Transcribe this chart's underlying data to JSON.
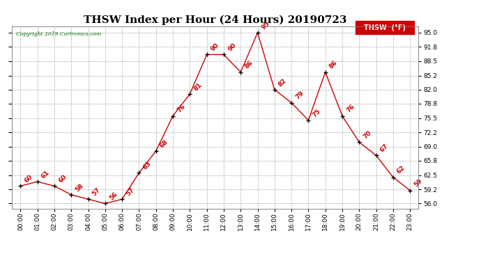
{
  "title": "THSW Index per Hour (24 Hours) 20190723",
  "copyright": "Copyright 2019 Cartronics.com",
  "legend_label": "THSW  (°F)",
  "x_labels": [
    "00:00",
    "01:00",
    "02:00",
    "03:00",
    "04:00",
    "05:00",
    "06:00",
    "07:00",
    "08:00",
    "09:00",
    "10:00",
    "11:00",
    "12:00",
    "13:00",
    "14:00",
    "15:00",
    "16:00",
    "17:00",
    "18:00",
    "19:00",
    "20:00",
    "21:00",
    "22:00",
    "23:00"
  ],
  "y_vals": [
    60,
    61,
    60,
    58,
    57,
    56,
    57,
    63,
    68,
    76,
    81,
    90,
    90,
    86,
    95,
    82,
    79,
    75,
    86,
    76,
    70,
    67,
    62,
    59
  ],
  "yticks": [
    56.0,
    59.2,
    62.5,
    65.8,
    69.0,
    72.2,
    75.5,
    78.8,
    82.0,
    85.2,
    88.5,
    91.8,
    95.0
  ],
  "ymin": 54.8,
  "ymax": 96.5,
  "line_color": "#cc0000",
  "marker_color": "#000000",
  "label_color": "#cc0000",
  "background_color": "#ffffff",
  "grid_color": "#aaaaaa",
  "title_fontsize": 11,
  "annotation_fontsize": 6.5,
  "tick_fontsize": 6.5,
  "copyright_color": "#006400",
  "legend_bg": "#cc0000",
  "legend_text_color": "#ffffff",
  "legend_fontsize": 7
}
